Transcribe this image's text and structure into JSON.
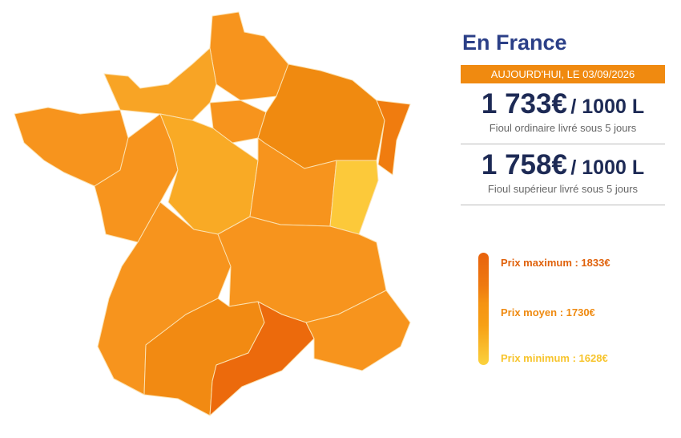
{
  "title": "En France",
  "date": "AUJOURD'HUI, LE 03/09/2026",
  "prices": [
    {
      "amount": "1 733€",
      "unit": "/ 1000 L",
      "description": "Fioul ordinaire livré sous 5 jours"
    },
    {
      "amount": "1 758€",
      "unit": "/ 1000 L",
      "description": "Fioul supérieur livré sous 5 jours"
    }
  ],
  "legend": [
    "Prix maximum : 1833€",
    "Prix moyen : 1730€",
    "Prix minimum : 1628€"
  ]
}
